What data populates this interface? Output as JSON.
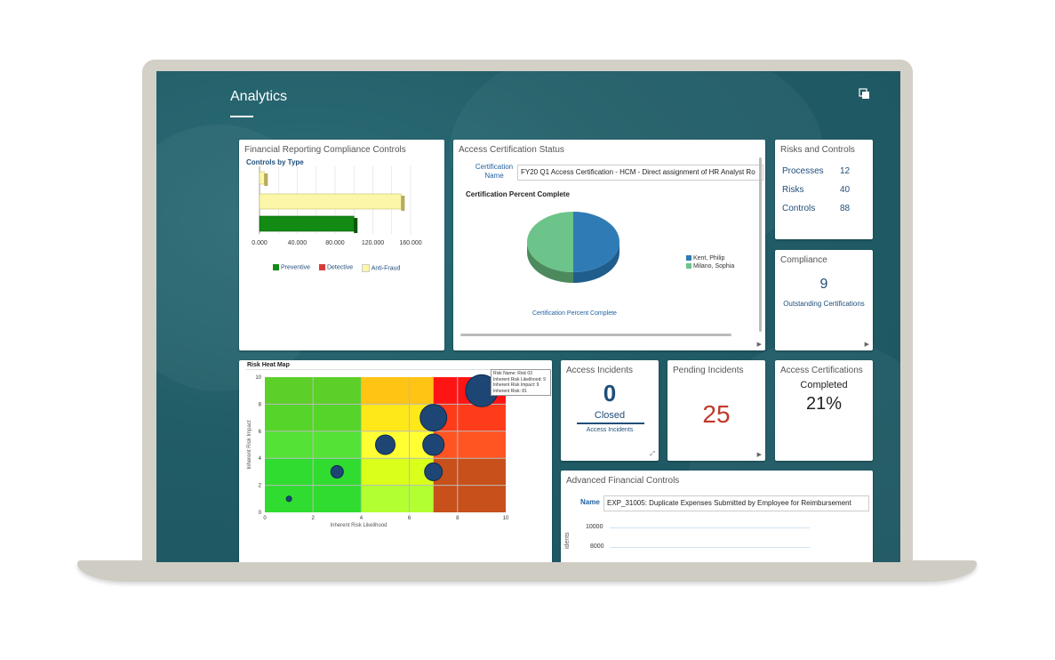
{
  "app_title": "Analytics",
  "icons": {
    "top_right": "stack-icon",
    "arrow": "arrow-right-icon",
    "expand": "expand-icon"
  },
  "financial": {
    "title": "Financial Reporting Compliance Controls",
    "subtitle": "Controls by Type",
    "chart_data": {
      "type": "bar",
      "orientation": "horizontal",
      "categories": [
        "Anti-Fraud",
        "Detective",
        "Preventive"
      ],
      "values": [
        5000,
        150000,
        100000
      ],
      "xticks": [
        "0.000",
        "40.000",
        "80.000",
        "120.000",
        "160.000"
      ],
      "xlim": [
        0,
        160000
      ],
      "legend": [
        "Preventive",
        "Detective",
        "Anti-Fraud"
      ],
      "colors": {
        "Preventive": "#138a13",
        "Detective": "#d63a3a",
        "Anti-Fraud": "#fbf6a8"
      }
    }
  },
  "access_cert_status": {
    "title": "Access Certification Status",
    "field_label": "Certification Name",
    "field_value": "FY20 Q1 Access Certification - HCM - Direct assignment of HR Analyst Ro",
    "chart_title": "Certification Percent Complete",
    "chart_caption": "Certification Percent Complete",
    "chart_data": {
      "type": "pie",
      "labels": [
        "Kent, Philip",
        "Milano, Sophia"
      ],
      "values": [
        50,
        50
      ],
      "colors": [
        "#2e7bb5",
        "#6cc48a"
      ]
    }
  },
  "risks_controls": {
    "title": "Risks and Controls",
    "rows": [
      {
        "label": "Processes",
        "value": "12"
      },
      {
        "label": "Risks",
        "value": "40"
      },
      {
        "label": "Controls",
        "value": "88"
      }
    ]
  },
  "compliance": {
    "title": "Compliance",
    "value": "9",
    "caption": "Outstanding Certifications"
  },
  "heat_map": {
    "title": "Risk Heat Map",
    "tooltip": [
      "Risk Name: Risk 03",
      "Inherent Risk Likelihood: 9",
      "Inherent Risk Impact: 9",
      "Inherent Risk: 81"
    ],
    "chart_data": {
      "type": "scatter",
      "xlabel": "Inherent Risk Likelihood",
      "ylabel": "Inherent Risk Impact",
      "xlim": [
        0,
        10
      ],
      "ylim": [
        0,
        10
      ],
      "xticks": [
        "0",
        "2",
        "4",
        "6",
        "8",
        "10"
      ],
      "yticks": [
        "0",
        "2",
        "4",
        "6",
        "8",
        "10"
      ],
      "points": [
        {
          "x": 9,
          "y": 9,
          "r": 18
        },
        {
          "x": 7,
          "y": 7,
          "r": 15
        },
        {
          "x": 5,
          "y": 5,
          "r": 11
        },
        {
          "x": 7,
          "y": 5,
          "r": 12
        },
        {
          "x": 7,
          "y": 3,
          "r": 10
        },
        {
          "x": 3,
          "y": 3,
          "r": 7
        },
        {
          "x": 1,
          "y": 1,
          "r": 3
        }
      ]
    }
  },
  "access_incidents": {
    "title": "Access Incidents",
    "value": "0",
    "status": "Closed",
    "caption": "Access Incidents"
  },
  "pending_incidents": {
    "title": "Pending Incidents",
    "value": "25"
  },
  "access_certifications": {
    "title": "Access Certifications",
    "label": "Completed",
    "value": "21%"
  },
  "advanced": {
    "title": "Advanced Financial Controls",
    "name_label": "Name",
    "name_value": "EXP_31005: Duplicate Expenses Submitted by Employee for Reimbursement",
    "chart_data": {
      "type": "line",
      "yticks": [
        "10000",
        "8000"
      ],
      "ylabel": "idents"
    }
  }
}
